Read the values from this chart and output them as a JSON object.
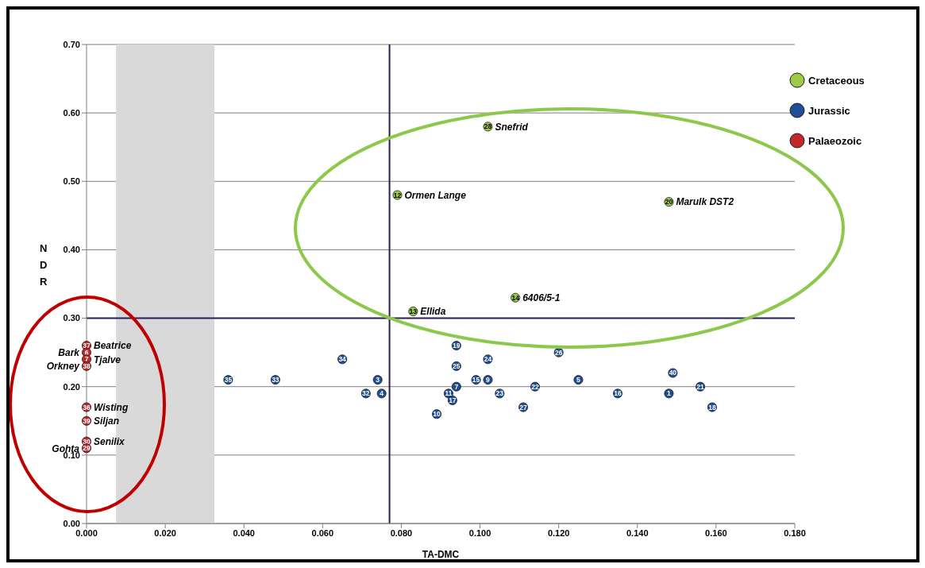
{
  "chart_data": {
    "type": "scatter",
    "xlabel": "TA-DMC",
    "ylabel": "NDR",
    "xlim": [
      0,
      0.18
    ],
    "xticks": [
      {
        "value": 0,
        "label": "0.000"
      },
      {
        "value": 0.02,
        "label": "0.020"
      },
      {
        "value": 0.04,
        "label": "0.040"
      },
      {
        "value": 0.06,
        "label": "0.060"
      },
      {
        "value": 0.08,
        "label": "0.080"
      },
      {
        "value": 0.1,
        "label": "0.100"
      },
      {
        "value": 0.12,
        "label": "0.120"
      },
      {
        "value": 0.14,
        "label": "0.140"
      },
      {
        "value": 0.16,
        "label": "0.160"
      },
      {
        "value": 0.18,
        "label": "0.180"
      }
    ],
    "ylim": [
      0,
      0.7
    ],
    "yticks": [
      {
        "value": 0,
        "label": "0.00"
      },
      {
        "value": 0.1,
        "label": "0.10"
      },
      {
        "value": 0.2,
        "label": "0.20"
      },
      {
        "value": 0.3,
        "label": "0.30"
      },
      {
        "value": 0.4,
        "label": "0.40"
      },
      {
        "value": 0.5,
        "label": "0.50"
      },
      {
        "value": 0.6,
        "label": "0.60"
      },
      {
        "value": 0.7,
        "label": "0.70"
      }
    ],
    "grid": "y",
    "legend": "top right",
    "marker": "circle",
    "series": [
      {
        "name": "Cretaceous",
        "color": "#9bcb45",
        "x": [
          0.102,
          0.079,
          0.148,
          0.109,
          0.083
        ],
        "values": [
          0.58,
          0.48,
          0.47,
          0.33,
          0.31
        ]
      },
      {
        "name": "Jurassic",
        "color": "#1f4e96",
        "x": [
          0.036,
          0.048,
          0.065,
          0.074,
          0.071,
          0.075,
          0.094,
          0.094,
          0.099,
          0.102,
          0.094,
          0.092,
          0.093,
          0.089,
          0.102,
          0.105,
          0.114,
          0.111,
          0.12,
          0.125,
          0.135,
          0.148,
          0.149,
          0.156,
          0.159
        ],
        "values": [
          0.21,
          0.21,
          0.24,
          0.21,
          0.19,
          0.19,
          0.26,
          0.23,
          0.21,
          0.21,
          0.2,
          0.19,
          0.18,
          0.16,
          0.24,
          0.19,
          0.2,
          0.17,
          0.25,
          0.21,
          0.19,
          0.19,
          0.22,
          0.2,
          0.17
        ]
      },
      {
        "name": "Palaeozoic",
        "color": "#c0282a",
        "x": [
          0,
          0,
          0,
          0,
          0,
          0,
          0,
          0
        ],
        "values": [
          0.26,
          0.25,
          0.24,
          0.23,
          0.17,
          0.15,
          0.12,
          0.11
        ]
      }
    ],
    "ref_lines": [
      {
        "axis": "x",
        "value": 0.077,
        "color": "#2b1b5c"
      },
      {
        "axis": "y",
        "value": 0.3,
        "color": "#2b1b5c"
      }
    ],
    "bands": [
      {
        "axis": "x",
        "from": 0.0075,
        "to": 0.0325,
        "color": "#d9d9d9"
      }
    ],
    "annotations": [
      {
        "text": "28",
        "x": 0.102,
        "y": 0.58
      },
      {
        "text": "12",
        "x": 0.079,
        "y": 0.48
      },
      {
        "text": "20",
        "x": 0.148,
        "y": 0.47
      },
      {
        "text": "14",
        "x": 0.109,
        "y": 0.33
      },
      {
        "text": "13",
        "x": 0.083,
        "y": 0.31
      },
      {
        "text": "35",
        "x": 0.036,
        "y": 0.21
      },
      {
        "text": "33",
        "x": 0.048,
        "y": 0.21
      },
      {
        "text": "34",
        "x": 0.065,
        "y": 0.24
      },
      {
        "text": "3",
        "x": 0.074,
        "y": 0.21
      },
      {
        "text": "32",
        "x": 0.071,
        "y": 0.19
      },
      {
        "text": "4",
        "x": 0.075,
        "y": 0.19
      },
      {
        "text": "19",
        "x": 0.094,
        "y": 0.26
      },
      {
        "text": "25",
        "x": 0.094,
        "y": 0.23
      },
      {
        "text": "15",
        "x": 0.099,
        "y": 0.21
      },
      {
        "text": "9",
        "x": 0.102,
        "y": 0.21
      },
      {
        "text": "7",
        "x": 0.094,
        "y": 0.2
      },
      {
        "text": "11",
        "x": 0.092,
        "y": 0.19
      },
      {
        "text": "17",
        "x": 0.093,
        "y": 0.18
      },
      {
        "text": "10",
        "x": 0.089,
        "y": 0.16
      },
      {
        "text": "24",
        "x": 0.102,
        "y": 0.24
      },
      {
        "text": "23",
        "x": 0.105,
        "y": 0.19
      },
      {
        "text": "22",
        "x": 0.114,
        "y": 0.2
      },
      {
        "text": "27",
        "x": 0.111,
        "y": 0.17
      },
      {
        "text": "26",
        "x": 0.12,
        "y": 0.25
      },
      {
        "text": "5",
        "x": 0.125,
        "y": 0.21
      },
      {
        "text": "16",
        "x": 0.135,
        "y": 0.19
      },
      {
        "text": "1",
        "x": 0.148,
        "y": 0.19
      },
      {
        "text": "40",
        "x": 0.149,
        "y": 0.22
      },
      {
        "text": "21",
        "x": 0.156,
        "y": 0.2
      },
      {
        "text": "18",
        "x": 0.159,
        "y": 0.17
      },
      {
        "text": "37",
        "x": 0,
        "y": 0.26
      },
      {
        "text": "6",
        "x": 0,
        "y": 0.25
      },
      {
        "text": "7",
        "x": 0,
        "y": 0.24
      },
      {
        "text": "38",
        "x": 0,
        "y": 0.23
      },
      {
        "text": "36",
        "x": 0,
        "y": 0.17
      },
      {
        "text": "39",
        "x": 0,
        "y": 0.15
      },
      {
        "text": "30",
        "x": 0,
        "y": 0.12
      },
      {
        "text": "29",
        "x": 0,
        "y": 0.11
      },
      {
        "text": "Snefrid",
        "x": 0.102,
        "y": 0.58
      },
      {
        "text": "Ormen Lange",
        "x": 0.079,
        "y": 0.48
      },
      {
        "text": "Marulk DST2",
        "x": 0.148,
        "y": 0.47
      },
      {
        "text": "6406/5-1",
        "x": 0.109,
        "y": 0.33
      },
      {
        "text": "Ellida",
        "x": 0.083,
        "y": 0.31
      },
      {
        "text": "Beatrice",
        "x": 0,
        "y": 0.26
      },
      {
        "text": "Bark",
        "x": 0,
        "y": 0.25
      },
      {
        "text": "Tjalve",
        "x": 0,
        "y": 0.24
      },
      {
        "text": "Orkney",
        "x": 0,
        "y": 0.23
      },
      {
        "text": "Wisting",
        "x": 0,
        "y": 0.17
      },
      {
        "text": "Siljan",
        "x": 0,
        "y": 0.15
      },
      {
        "text": "Senilix",
        "x": 0,
        "y": 0.12
      },
      {
        "text": "Gohta",
        "x": 0,
        "y": 0.11
      }
    ]
  }
}
